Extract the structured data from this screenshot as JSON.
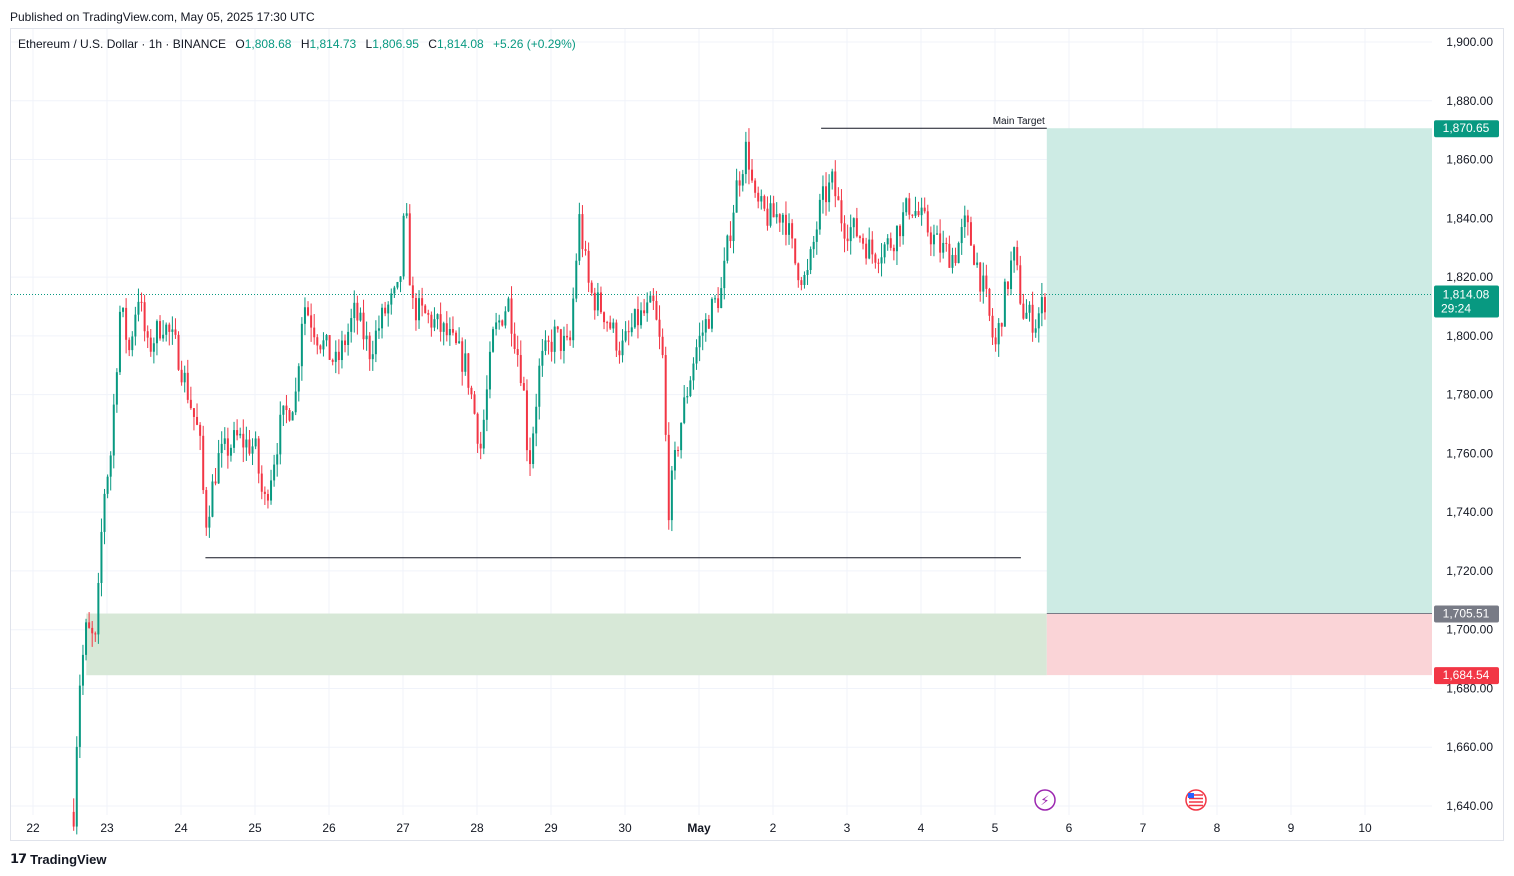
{
  "published": "Published on TradingView.com, May 05, 2025 17:30 UTC",
  "legend": {
    "symbol": "Ethereum / U.S. Dollar · 1h · BINANCE",
    "o_label": "O",
    "o": "1,808.68",
    "h_label": "H",
    "h": "1,814.73",
    "l_label": "L",
    "l": "1,806.95",
    "c_label": "C",
    "c": "1,814.08",
    "change": "+5.26 (+0.29%)"
  },
  "footer": {
    "logo_text": "TradingView"
  },
  "colors": {
    "up": "#089981",
    "down": "#f23645",
    "target_zone": "#cdebe4",
    "stop_zone": "#fad4d7",
    "demand_zone": "#d7e8d7",
    "grid": "#f0f3fa"
  },
  "chart_data": {
    "type": "candlestick",
    "title": "",
    "ylim": [
      1637,
      1905
    ],
    "y_ticks": [
      "1,640.00",
      "1,660.00",
      "1,680.00",
      "1,700.00",
      "1,720.00",
      "1,740.00",
      "1,760.00",
      "1,780.00",
      "1,800.00",
      "1,820.00",
      "1,840.00",
      "1,860.00",
      "1,880.00",
      "1,900.00"
    ],
    "x_ticks": [
      "22",
      "23",
      "24",
      "25",
      "26",
      "27",
      "28",
      "29",
      "30",
      "May",
      "2",
      "3",
      "4",
      "5",
      "6",
      "7",
      "8",
      "9",
      "10"
    ],
    "grid": true,
    "price_tags": {
      "target": "1,870.65",
      "current": "1,814.08",
      "countdown": "29:24",
      "entry": "1,705.51",
      "stop": "1,684.54"
    },
    "annotations": {
      "main_target_label": "Main Target",
      "main_target_price": 1870.65,
      "support_line_price": 1724.5,
      "demand_zone": [
        1684.5,
        1705.5
      ],
      "entry": 1705.51,
      "stop": 1684.54,
      "target": 1870.65
    },
    "series_keypoints": [
      [
        22.55,
        1638
      ],
      [
        22.62,
        1680
      ],
      [
        22.72,
        1700
      ],
      [
        22.85,
        1695
      ],
      [
        22.95,
        1745
      ],
      [
        23.05,
        1760
      ],
      [
        23.18,
        1810
      ],
      [
        23.3,
        1795
      ],
      [
        23.42,
        1815
      ],
      [
        23.55,
        1795
      ],
      [
        23.75,
        1805
      ],
      [
        23.95,
        1795
      ],
      [
        24.1,
        1780
      ],
      [
        24.25,
        1765
      ],
      [
        24.33,
        1736
      ],
      [
        24.5,
        1758
      ],
      [
        24.75,
        1765
      ],
      [
        25.0,
        1762
      ],
      [
        25.12,
        1742
      ],
      [
        25.35,
        1770
      ],
      [
        25.55,
        1780
      ],
      [
        25.65,
        1812
      ],
      [
        25.85,
        1800
      ],
      [
        26.1,
        1790
      ],
      [
        26.35,
        1808
      ],
      [
        26.55,
        1795
      ],
      [
        26.75,
        1808
      ],
      [
        26.95,
        1815
      ],
      [
        27.03,
        1845
      ],
      [
        27.12,
        1810
      ],
      [
        27.4,
        1805
      ],
      [
        27.6,
        1800
      ],
      [
        27.85,
        1790
      ],
      [
        28.05,
        1762
      ],
      [
        28.22,
        1800
      ],
      [
        28.42,
        1812
      ],
      [
        28.62,
        1785
      ],
      [
        28.7,
        1755
      ],
      [
        28.85,
        1790
      ],
      [
        29.05,
        1800
      ],
      [
        29.25,
        1795
      ],
      [
        29.38,
        1840
      ],
      [
        29.52,
        1815
      ],
      [
        29.72,
        1808
      ],
      [
        29.95,
        1795
      ],
      [
        30.15,
        1805
      ],
      [
        30.38,
        1810
      ],
      [
        30.52,
        1790
      ],
      [
        30.58,
        1740
      ],
      [
        30.75,
        1770
      ],
      [
        30.95,
        1795
      ],
      [
        31.15,
        1808
      ],
      [
        31.3,
        1815
      ],
      [
        31.5,
        1850
      ],
      [
        31.65,
        1865
      ],
      [
        31.75,
        1845
      ],
      [
        31.95,
        1840
      ],
      [
        32.15,
        1842
      ],
      [
        32.3,
        1825
      ],
      [
        32.45,
        1818
      ],
      [
        32.65,
        1845
      ],
      [
        32.8,
        1852
      ],
      [
        32.95,
        1838
      ],
      [
        33.15,
        1835
      ],
      [
        33.35,
        1828
      ],
      [
        33.6,
        1832
      ],
      [
        33.85,
        1845
      ],
      [
        34.05,
        1838
      ],
      [
        34.25,
        1830
      ],
      [
        34.45,
        1827
      ],
      [
        34.6,
        1838
      ],
      [
        34.7,
        1830
      ],
      [
        34.88,
        1812
      ],
      [
        35.0,
        1795
      ],
      [
        35.12,
        1812
      ],
      [
        35.25,
        1828
      ],
      [
        35.38,
        1808
      ],
      [
        35.55,
        1805
      ],
      [
        35.7,
        1814
      ]
    ]
  }
}
